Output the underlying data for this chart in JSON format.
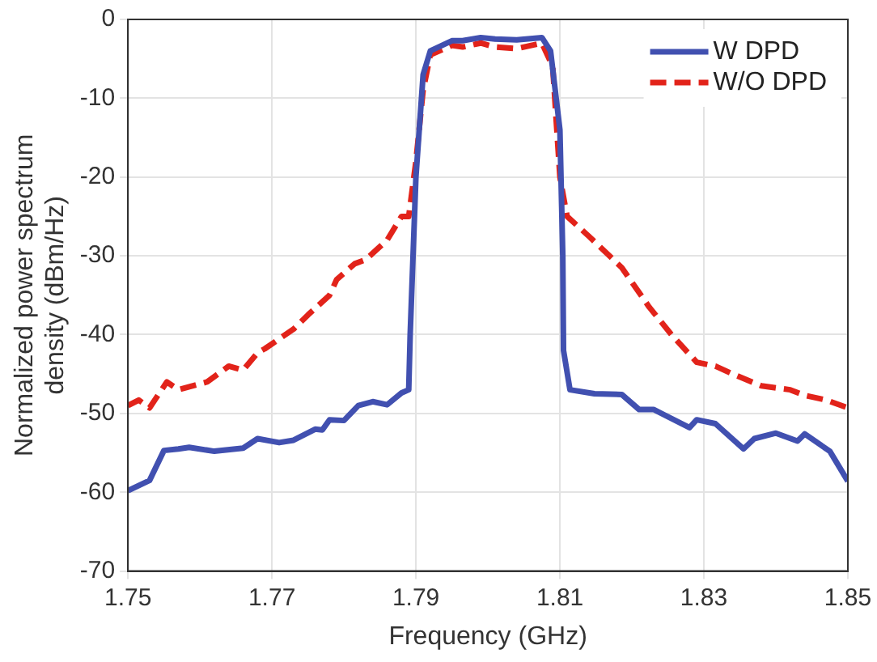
{
  "chart_data": {
    "type": "line",
    "xlabel": "Frequency (GHz)",
    "ylabel": "Normalized power spectrum density (dBm/Hz)",
    "xlim": [
      1.75,
      1.85
    ],
    "xticks": [
      1.75,
      1.77,
      1.79,
      1.81,
      1.83,
      1.85
    ],
    "ylim": [
      -70,
      0
    ],
    "yticks": [
      -70,
      -60,
      -50,
      -40,
      -30,
      -20,
      -10,
      0
    ],
    "grid": true,
    "legend": "top right",
    "marker": "none",
    "series": [
      {
        "name": "W DPD",
        "color": "#4150b0",
        "line_style": "solid",
        "x": [
          1.75,
          1.753,
          1.755,
          1.757,
          1.7585,
          1.762,
          1.766,
          1.768,
          1.771,
          1.773,
          1.776,
          1.777,
          1.778,
          1.78,
          1.782,
          1.784,
          1.786,
          1.788,
          1.789,
          1.7892,
          1.79,
          1.791,
          1.792,
          1.795,
          1.7965,
          1.799,
          1.801,
          1.804,
          1.8075,
          1.8087,
          1.81,
          1.8104,
          1.8105,
          1.8114,
          1.8148,
          1.8186,
          1.821,
          1.823,
          1.828,
          1.829,
          1.8316,
          1.8355,
          1.837,
          1.84,
          1.843,
          1.844,
          1.8475,
          1.85
        ],
        "values": [
          -59.8,
          -58.5,
          -54.7,
          -54.5,
          -54.3,
          -54.8,
          -54.4,
          -53.2,
          -53.7,
          -53.4,
          -52,
          -52.1,
          -50.8,
          -50.9,
          -49,
          -48.5,
          -48.9,
          -47.4,
          -47,
          -40,
          -20,
          -7,
          -4,
          -2.7,
          -2.7,
          -2.3,
          -2.5,
          -2.6,
          -2.3,
          -4,
          -14,
          -30,
          -42,
          -47,
          -47.5,
          -47.6,
          -49.5,
          -49.5,
          -51.8,
          -50.8,
          -51.3,
          -54.5,
          -53.2,
          -52.5,
          -53.5,
          -52.6,
          -54.8,
          -58.6
        ]
      },
      {
        "name": "W/O DPD",
        "color": "#e2231a",
        "line_style": "dashed",
        "x": [
          1.75,
          1.7515,
          1.753,
          1.7554,
          1.757,
          1.761,
          1.764,
          1.766,
          1.768,
          1.769,
          1.773,
          1.775,
          1.778,
          1.779,
          1.7815,
          1.783,
          1.786,
          1.788,
          1.789,
          1.79,
          1.791,
          1.792,
          1.795,
          1.7965,
          1.799,
          1.801,
          1.804,
          1.8075,
          1.809,
          1.81,
          1.811,
          1.814,
          1.8186,
          1.8224,
          1.8255,
          1.829,
          1.8316,
          1.834,
          1.838,
          1.842,
          1.844,
          1.847,
          1.85
        ],
        "values": [
          -49,
          -48.3,
          -49.3,
          -46,
          -47,
          -46,
          -44,
          -44.5,
          -42.3,
          -41.8,
          -39.3,
          -37.5,
          -35,
          -33,
          -31,
          -30.5,
          -28,
          -25,
          -25,
          -18,
          -9,
          -4.5,
          -3.3,
          -3.5,
          -3,
          -3.5,
          -3.7,
          -3,
          -6,
          -20,
          -25,
          -27.5,
          -31.5,
          -36.5,
          -40,
          -43.5,
          -44,
          -45,
          -46.5,
          -47,
          -47.7,
          -48.3,
          -49.3
        ]
      }
    ]
  }
}
